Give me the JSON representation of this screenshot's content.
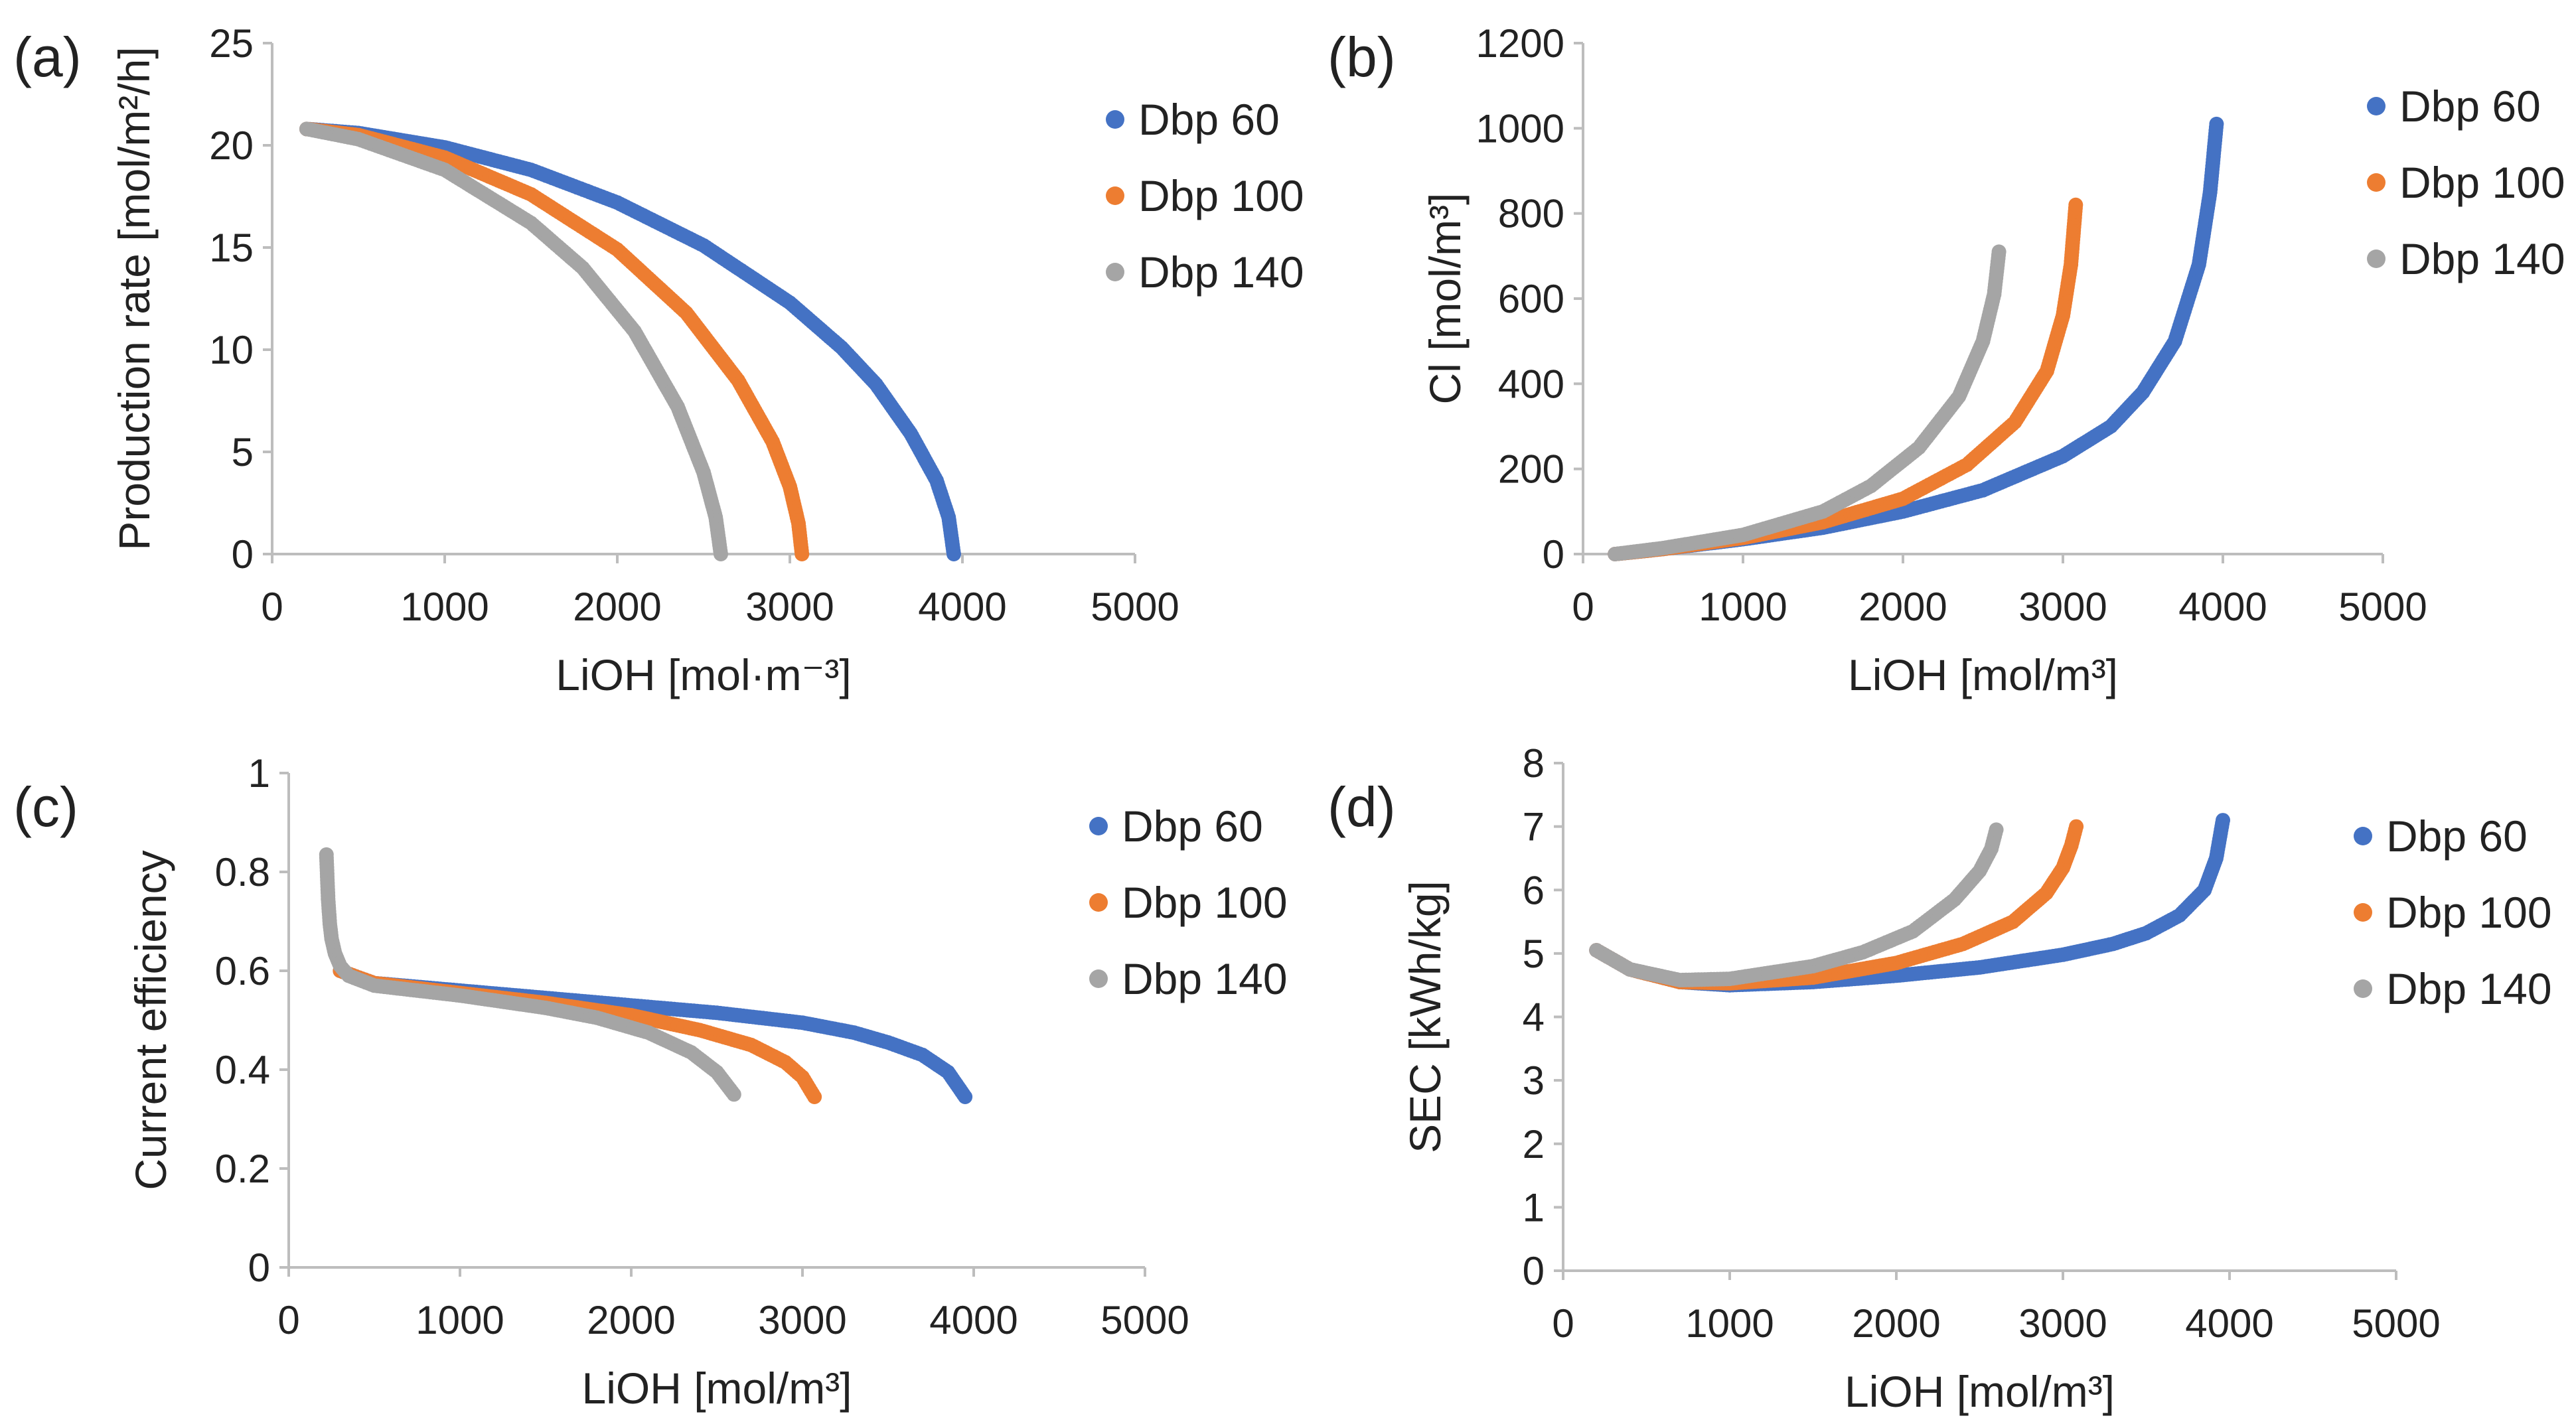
{
  "chart_data": [
    {
      "type": "scatter",
      "panel_label": "(a)",
      "title": "",
      "xlabel": "LiOH [mol·m⁻³]",
      "ylabel": "Production rate [mol/m²/h]",
      "xlim": [
        0,
        5000
      ],
      "ylim": [
        0,
        25
      ],
      "xticks": [
        0,
        1000,
        2000,
        3000,
        4000,
        5000
      ],
      "yticks": [
        0,
        5,
        10,
        15,
        20,
        25
      ],
      "legend_position": "right",
      "series": [
        {
          "name": "Dbp 60",
          "color": "#4472c4",
          "x": [
            200,
            500,
            1000,
            1500,
            2000,
            2500,
            3000,
            3300,
            3500,
            3700,
            3850,
            3920,
            3950
          ],
          "y": [
            20.8,
            20.6,
            19.9,
            18.8,
            17.2,
            15.1,
            12.3,
            10.1,
            8.3,
            5.9,
            3.6,
            1.8,
            0
          ]
        },
        {
          "name": "Dbp 100",
          "color": "#ed7d31",
          "x": [
            200,
            500,
            1000,
            1500,
            2000,
            2400,
            2700,
            2900,
            3000,
            3050,
            3070
          ],
          "y": [
            20.8,
            20.5,
            19.4,
            17.6,
            14.9,
            11.8,
            8.5,
            5.5,
            3.3,
            1.5,
            0
          ]
        },
        {
          "name": "Dbp 140",
          "color": "#a5a5a5",
          "x": [
            200,
            500,
            1000,
            1500,
            1800,
            2100,
            2350,
            2500,
            2570,
            2600
          ],
          "y": [
            20.8,
            20.3,
            18.8,
            16.2,
            14.0,
            10.9,
            7.2,
            4.0,
            1.8,
            0
          ]
        }
      ]
    },
    {
      "type": "scatter",
      "panel_label": "(b)",
      "title": "",
      "xlabel": "LiOH [mol/m³]",
      "ylabel": "Cl [mol/m³]",
      "xlim": [
        0,
        5000
      ],
      "ylim": [
        0,
        1200
      ],
      "xticks": [
        0,
        1000,
        2000,
        3000,
        4000,
        5000
      ],
      "yticks": [
        0,
        200,
        400,
        600,
        800,
        1000,
        1200
      ],
      "legend_position": "right",
      "series": [
        {
          "name": "Dbp 60",
          "color": "#4472c4",
          "x": [
            200,
            500,
            1000,
            1500,
            2000,
            2500,
            3000,
            3300,
            3500,
            3700,
            3850,
            3920,
            3960
          ],
          "y": [
            0,
            12,
            35,
            62,
            100,
            150,
            230,
            300,
            380,
            500,
            680,
            850,
            1010
          ]
        },
        {
          "name": "Dbp 100",
          "color": "#ed7d31",
          "x": [
            200,
            500,
            1000,
            1500,
            2000,
            2400,
            2700,
            2900,
            3000,
            3050,
            3080
          ],
          "y": [
            0,
            12,
            38,
            75,
            130,
            210,
            310,
            430,
            560,
            680,
            820
          ]
        },
        {
          "name": "Dbp 140",
          "color": "#a5a5a5",
          "x": [
            200,
            500,
            1000,
            1500,
            1800,
            2100,
            2350,
            2500,
            2570,
            2600
          ],
          "y": [
            0,
            14,
            45,
            100,
            160,
            250,
            370,
            500,
            610,
            710
          ]
        }
      ]
    },
    {
      "type": "scatter",
      "panel_label": "(c)",
      "title": "",
      "xlabel": "LiOH [mol/m³]",
      "ylabel": "Current efficiency",
      "xlim": [
        0,
        5000
      ],
      "ylim": [
        0,
        1
      ],
      "xticks": [
        0,
        1000,
        2000,
        3000,
        4000,
        5000
      ],
      "yticks": [
        0,
        0.2,
        0.4,
        0.6,
        0.8,
        1
      ],
      "legend_position": "right",
      "series": [
        {
          "name": "Dbp 60",
          "color": "#4472c4",
          "x": [
            300,
            500,
            1000,
            1500,
            2000,
            2500,
            3000,
            3300,
            3500,
            3700,
            3850,
            3950
          ],
          "y": [
            0.6,
            0.575,
            0.56,
            0.545,
            0.53,
            0.515,
            0.495,
            0.475,
            0.455,
            0.43,
            0.395,
            0.345
          ]
        },
        {
          "name": "Dbp 100",
          "color": "#ed7d31",
          "x": [
            300,
            500,
            1000,
            1500,
            2000,
            2400,
            2700,
            2900,
            3000,
            3070
          ],
          "y": [
            0.6,
            0.575,
            0.555,
            0.535,
            0.51,
            0.48,
            0.45,
            0.415,
            0.385,
            0.345
          ]
        },
        {
          "name": "Dbp 140",
          "color": "#a5a5a5",
          "x": [
            220,
            230,
            240,
            250,
            270,
            300,
            350,
            500,
            1000,
            1500,
            1800,
            2100,
            2350,
            2500,
            2600
          ],
          "y": [
            0.835,
            0.745,
            0.695,
            0.665,
            0.635,
            0.61,
            0.59,
            0.57,
            0.55,
            0.525,
            0.505,
            0.475,
            0.435,
            0.395,
            0.35
          ]
        }
      ]
    },
    {
      "type": "scatter",
      "panel_label": "(d)",
      "title": "",
      "xlabel": "LiOH [mol/m³]",
      "ylabel": "SEC [kWh/kg]",
      "xlim": [
        0,
        5000
      ],
      "ylim": [
        0,
        8
      ],
      "xticks": [
        0,
        1000,
        2000,
        3000,
        4000,
        5000
      ],
      "yticks": [
        0,
        1,
        2,
        3,
        4,
        5,
        6,
        7,
        8
      ],
      "legend_position": "right",
      "series": [
        {
          "name": "Dbp 60",
          "color": "#4472c4",
          "x": [
            200,
            400,
            700,
            1000,
            1500,
            2000,
            2500,
            3000,
            3300,
            3500,
            3700,
            3850,
            3920,
            3960
          ],
          "y": [
            5.05,
            4.75,
            4.55,
            4.5,
            4.55,
            4.65,
            4.78,
            4.98,
            5.15,
            5.32,
            5.6,
            6.0,
            6.5,
            7.1
          ]
        },
        {
          "name": "Dbp 100",
          "color": "#ed7d31",
          "x": [
            200,
            400,
            700,
            1000,
            1500,
            2000,
            2400,
            2700,
            2900,
            3000,
            3050,
            3080
          ],
          "y": [
            5.05,
            4.75,
            4.55,
            4.53,
            4.62,
            4.85,
            5.15,
            5.5,
            5.95,
            6.35,
            6.7,
            7.0
          ]
        },
        {
          "name": "Dbp 140",
          "color": "#a5a5a5",
          "x": [
            200,
            400,
            700,
            1000,
            1500,
            1800,
            2100,
            2350,
            2500,
            2570,
            2600
          ],
          "y": [
            5.05,
            4.75,
            4.58,
            4.6,
            4.8,
            5.02,
            5.35,
            5.85,
            6.3,
            6.65,
            6.95
          ]
        }
      ]
    }
  ]
}
